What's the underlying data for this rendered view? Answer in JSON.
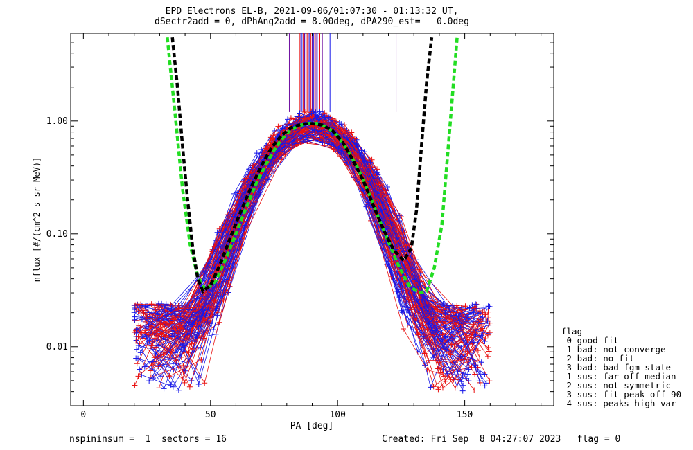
{
  "title_line1": "EPD Electrons EL-B, 2021-09-06/01:07:30 - 01:13:32 UT,",
  "title_line2": "dSectr2add = 0, dPhAng2add = 8.00deg, dPA290_est=   0.0deg",
  "footer": {
    "left": "nspininsum =  1  sectors = 16",
    "right": "Created: Fri Sep  8 04:27:07 2023   flag = 0"
  },
  "legend": {
    "title": "flag",
    "items": [
      " 0 good fit",
      " 1 bad: not converge",
      " 2 bad: no fit",
      " 3 bad: bad fgm state",
      "-1 sus: far off median",
      "-2 sus: not symmetric",
      "-3 sus: fit peak off 90",
      "-4 sus: peaks high var"
    ]
  },
  "colors": {
    "red_series": "#e81010",
    "blue_series": "#1818e8",
    "green_fit": "#22dd22",
    "black_fit": "#000000",
    "axes": "#000000"
  },
  "chart_data": {
    "type": "line",
    "xlabel": "PA [deg]",
    "ylabel": "nflux [#/(cm^2 s sr MeV)]",
    "xlim": [
      -5,
      185
    ],
    "ylim": [
      0.003,
      6.0
    ],
    "y_scale": "log",
    "x_ticks": [
      0,
      50,
      100,
      150
    ],
    "y_ticks": [
      0.01,
      0.1,
      1.0
    ],
    "y_tick_labels": [
      "0.01",
      "0.10",
      "1.00"
    ],
    "grid": false,
    "legend_position": "right",
    "series": [
      {
        "style": "dashed",
        "color": "#22dd22",
        "x": [
          33,
          36,
          39,
          42,
          45,
          48,
          52,
          56,
          60,
          64,
          68,
          72,
          76,
          80,
          84,
          88,
          90,
          92,
          96,
          100,
          104,
          108,
          112,
          116,
          120,
          124,
          128,
          132,
          135,
          138,
          141,
          144,
          147
        ],
        "y": [
          5.5,
          1.2,
          0.25,
          0.08,
          0.042,
          0.032,
          0.038,
          0.06,
          0.1,
          0.17,
          0.28,
          0.42,
          0.6,
          0.78,
          0.9,
          0.95,
          0.96,
          0.95,
          0.88,
          0.74,
          0.55,
          0.38,
          0.24,
          0.14,
          0.085,
          0.052,
          0.035,
          0.03,
          0.031,
          0.05,
          0.12,
          0.8,
          5.5
        ]
      },
      {
        "style": "dashed",
        "color": "#000000",
        "x": [
          35,
          37,
          39,
          41,
          43,
          45,
          47,
          50,
          54,
          58,
          62,
          66,
          70,
          74,
          78,
          82,
          86,
          90,
          94,
          98,
          102,
          106,
          110,
          114,
          118,
          122,
          126,
          129,
          131,
          133,
          135,
          137
        ],
        "y": [
          5.5,
          2.0,
          0.6,
          0.2,
          0.075,
          0.04,
          0.031,
          0.035,
          0.055,
          0.095,
          0.16,
          0.26,
          0.4,
          0.58,
          0.75,
          0.88,
          0.94,
          0.95,
          0.92,
          0.82,
          0.65,
          0.45,
          0.3,
          0.18,
          0.11,
          0.072,
          0.058,
          0.075,
          0.16,
          0.6,
          2.2,
          5.5
        ]
      }
    ],
    "vertical_markers": {
      "color_1": "#7010a0",
      "color_2": "#1818e8",
      "color_3": "#e81010",
      "x": [
        81,
        84,
        85,
        85.5,
        86,
        86.5,
        87,
        87.5,
        88,
        88.5,
        89,
        89.5,
        90,
        90.5,
        91,
        91.5,
        92,
        93,
        94,
        97,
        99,
        123
      ],
      "y_from": 1.2,
      "y_to": 6.0
    }
  }
}
